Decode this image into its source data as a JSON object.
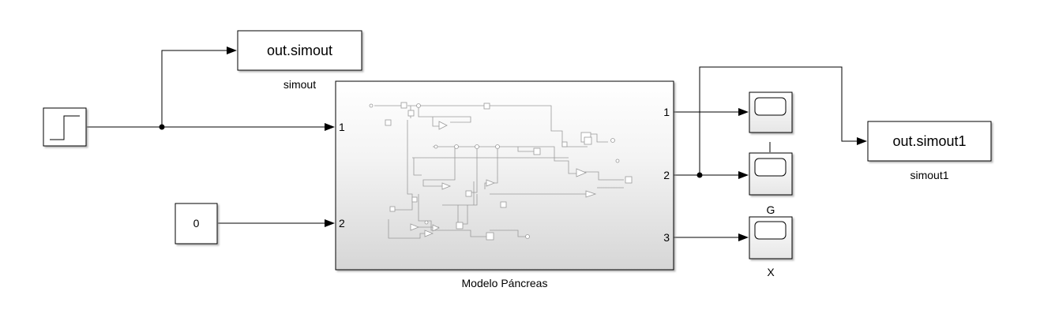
{
  "blocks": {
    "step": {
      "label": ""
    },
    "constant": {
      "value": "0",
      "label": ""
    },
    "to_workspace_1": {
      "text": "out.simout",
      "label": "simout"
    },
    "to_workspace_2": {
      "text": "out.simout1",
      "label": "simout1"
    },
    "subsystem": {
      "label": "Modelo Páncreas",
      "in_ports": [
        "1",
        "2"
      ],
      "out_ports": [
        "1",
        "2",
        "3"
      ]
    },
    "scope_1": {
      "label": ""
    },
    "scope_2": {
      "label": "G"
    },
    "scope_3": {
      "label": "X"
    }
  },
  "colors": {
    "line": "#000000",
    "subsystem_gradient_top": "#ffffff",
    "subsystem_gradient_bottom": "#d6d6d6",
    "preview": "#9a9a9a"
  }
}
